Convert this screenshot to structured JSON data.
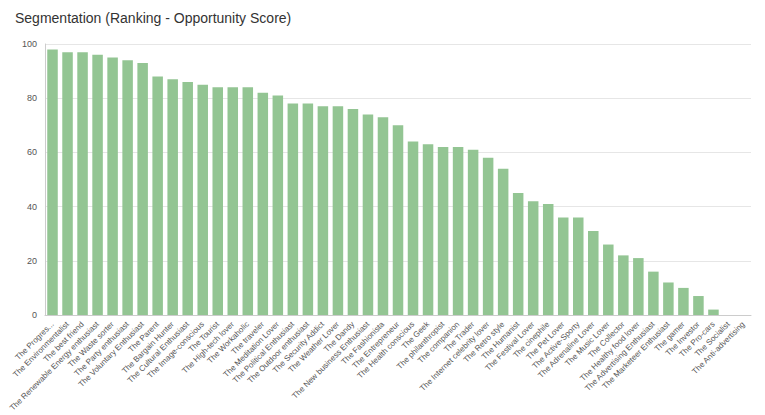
{
  "chart_data": {
    "type": "bar",
    "title": "Segmentation (Ranking - Opportunity Score)",
    "categories": [
      "The Progres...",
      "The Environmentalist",
      "The best friend",
      "The Renewable Energy enthusiast",
      "The Waste sorter",
      "The Party enthusiast",
      "The Voluntary Enthusiast",
      "The Parent",
      "The Bargain Hunter",
      "The Cultural Enthusiast",
      "The Image-conscious",
      "The Tourist",
      "The High-tech lover",
      "The Workaholic",
      "The traveler",
      "The Meditation Lover",
      "The Political Enthusiast",
      "The Outdoor enthusiast",
      "The Security Addict",
      "The Weather Lover",
      "The Dandy",
      "The New business Enthusiast",
      "The Fashionista",
      "The Entrepreneur",
      "The Health conscious",
      "The Geek",
      "The philanthropist",
      "The companion",
      "The Trader",
      "The Internet celebrity lover",
      "The Retro style",
      "The Humanist",
      "The Festival Lover",
      "The cinephile",
      "The Pet Lover",
      "The Active-Sporty",
      "The Adrenaline Lover",
      "The Music Lover",
      "The Collector",
      "The Healthy food lover",
      "The Advertising Enthusiast",
      "The Marketeer Enthusiast",
      "The gamer",
      "The Investor",
      "The Pro-cars",
      "The Socialist",
      "The Anti-advertising"
    ],
    "values": [
      98,
      97,
      97,
      96,
      95,
      94,
      93,
      88,
      87,
      86,
      85,
      84,
      84,
      84,
      82,
      81,
      78,
      78,
      77,
      77,
      76,
      74,
      73,
      70,
      64,
      63,
      62,
      62,
      61,
      58,
      54,
      45,
      42,
      41,
      36,
      36,
      31,
      26,
      22,
      21,
      16,
      12,
      10,
      7,
      2,
      0,
      0
    ],
    "color": "#93c593",
    "ylim": [
      0,
      100
    ],
    "yticks": [
      0,
      20,
      40,
      60,
      80,
      100
    ],
    "grid": true
  }
}
